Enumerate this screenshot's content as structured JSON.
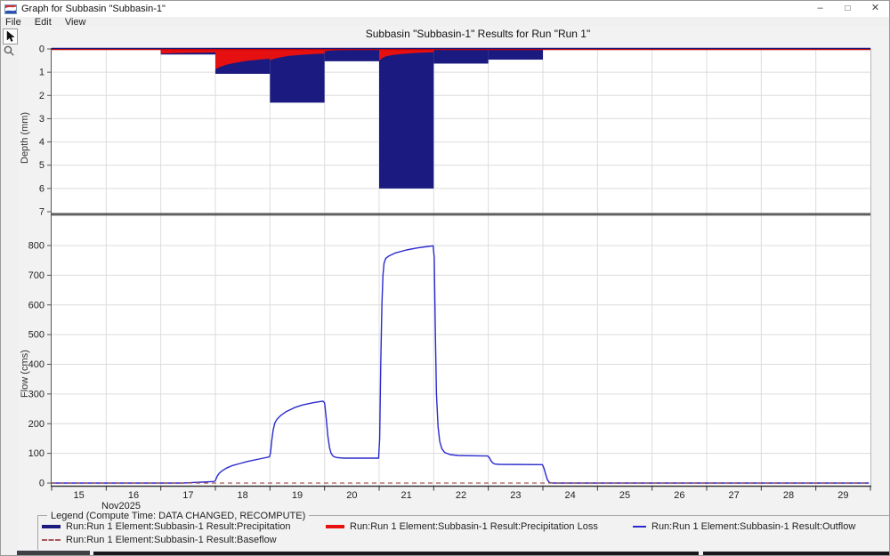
{
  "window": {
    "title": "Graph for Subbasin \"Subbasin-1\"",
    "controls": [
      {
        "name": "minimize",
        "glyph": "–"
      },
      {
        "name": "maximize",
        "glyph": "□"
      },
      {
        "name": "close",
        "glyph": "✕"
      }
    ]
  },
  "menu": {
    "items": [
      "File",
      "Edit",
      "View"
    ]
  },
  "toolbar": {
    "tools": [
      "pointer-tool",
      "zoom-tool"
    ]
  },
  "chart": {
    "title": "Subbasin \"Subbasin-1\" Results for Run \"Run 1\"",
    "top_ylabel": "Depth (mm)",
    "bottom_ylabel": "Flow (cms)"
  },
  "legend": {
    "title": "Legend (Compute Time: DATA CHANGED, RECOMPUTE)",
    "items": [
      {
        "label": "Run:Run 1 Element:Subbasin-1 Result:Precipitation",
        "color": "#1a1a80",
        "style": "thick"
      },
      {
        "label": "Run:Run 1 Element:Subbasin-1 Result:Precipitation Loss",
        "color": "#e61010",
        "style": "thick"
      },
      {
        "label": "Run:Run 1 Element:Subbasin-1 Result:Outflow",
        "color": "#2a2ace",
        "style": "thin"
      },
      {
        "label": "Run:Run 1 Element:Subbasin-1 Result:Baseflow",
        "color": "#a85858",
        "style": "dashed"
      }
    ]
  },
  "colors": {
    "precipitation": "#1a1a80",
    "precipitation_loss": "#e61010",
    "outflow": "#2a2ace",
    "baseflow": "#a85858",
    "grid": "#dcdcdc",
    "axis": "#444444",
    "separator": "#5f5f5f"
  },
  "chart_data": [
    {
      "type": "bar",
      "name": "precipitation-hyetograph",
      "ylabel": "Depth (mm)",
      "y_inverted": true,
      "ylim": [
        0,
        7
      ],
      "yticks": [
        0,
        1,
        2,
        3,
        4,
        5,
        6,
        7
      ],
      "x_days": [
        15,
        30
      ],
      "grid": true,
      "bars": [
        {
          "day_start": 17,
          "day_end": 18,
          "precip_mm": 0.24,
          "loss_mm_curve": [
            [
              17.0,
              0.2
            ],
            [
              17.25,
              0.185
            ],
            [
              17.5,
              0.17
            ],
            [
              17.75,
              0.16
            ],
            [
              18.0,
              0.15
            ]
          ]
        },
        {
          "day_start": 18,
          "day_end": 19,
          "precip_mm": 1.07,
          "loss_mm_curve": [
            [
              18.0,
              0.88
            ],
            [
              18.08,
              0.78
            ],
            [
              18.2,
              0.68
            ],
            [
              18.35,
              0.6
            ],
            [
              18.55,
              0.52
            ],
            [
              18.8,
              0.46
            ],
            [
              19.0,
              0.42
            ]
          ]
        },
        {
          "day_start": 19,
          "day_end": 20,
          "precip_mm": 2.31,
          "loss_mm_curve": [
            [
              19.0,
              0.49
            ],
            [
              19.08,
              0.42
            ],
            [
              19.2,
              0.36
            ],
            [
              19.35,
              0.3
            ],
            [
              19.55,
              0.26
            ],
            [
              19.8,
              0.22
            ],
            [
              20.0,
              0.2
            ]
          ]
        },
        {
          "day_start": 20,
          "day_end": 21,
          "precip_mm": 0.53,
          "loss_mm_curve": [
            [
              20.0,
              0.1
            ],
            [
              20.12,
              0.07
            ],
            [
              20.3,
              0.05
            ],
            [
              20.6,
              0.04
            ],
            [
              21.0,
              0.035
            ]
          ]
        },
        {
          "day_start": 21,
          "day_end": 22,
          "precip_mm": 6.0,
          "loss_mm_curve": [
            [
              21.0,
              0.52
            ],
            [
              21.05,
              0.4
            ],
            [
              21.12,
              0.32
            ],
            [
              21.25,
              0.26
            ],
            [
              21.45,
              0.21
            ],
            [
              21.7,
              0.17
            ],
            [
              22.0,
              0.14
            ]
          ]
        },
        {
          "day_start": 22,
          "day_end": 23,
          "precip_mm": 0.63,
          "loss_mm_curve": [
            [
              22.0,
              0.05
            ],
            [
              22.3,
              0.03
            ],
            [
              23.0,
              0.02
            ]
          ]
        },
        {
          "day_start": 23,
          "day_end": 24,
          "precip_mm": 0.46,
          "loss_mm_curve": [
            [
              23.0,
              0.02
            ],
            [
              24.0,
              0.015
            ]
          ]
        }
      ]
    },
    {
      "type": "line",
      "name": "flow-hydrograph",
      "ylabel": "Flow (cms)",
      "ylim": [
        0,
        905
      ],
      "yticks": [
        0,
        100,
        200,
        300,
        400,
        500,
        600,
        700,
        800
      ],
      "grid": true,
      "x_axis": {
        "start_day": 15,
        "end_day": 30,
        "tick_labels": [
          "15",
          "16",
          "17",
          "18",
          "19",
          "20",
          "21",
          "22",
          "23",
          "24",
          "25",
          "26",
          "27",
          "28",
          "29"
        ],
        "month_label": "Nov2025"
      },
      "series": [
        {
          "name": "Outflow",
          "color": "#2a2ace",
          "dashed": false,
          "points": [
            [
              15,
              0
            ],
            [
              17.4,
              0
            ],
            [
              17.5,
              1
            ],
            [
              17.75,
              3
            ],
            [
              17.97,
              5
            ],
            [
              18.0,
              8
            ],
            [
              18.03,
              22
            ],
            [
              18.07,
              33
            ],
            [
              18.12,
              41
            ],
            [
              18.2,
              50
            ],
            [
              18.3,
              58
            ],
            [
              18.45,
              66
            ],
            [
              18.6,
              73
            ],
            [
              18.8,
              81
            ],
            [
              18.99,
              88
            ],
            [
              19.01,
              100
            ],
            [
              19.03,
              140
            ],
            [
              19.06,
              180
            ],
            [
              19.09,
              203
            ],
            [
              19.13,
              215
            ],
            [
              19.2,
              228
            ],
            [
              19.3,
              241
            ],
            [
              19.45,
              254
            ],
            [
              19.6,
              263
            ],
            [
              19.8,
              271
            ],
            [
              19.97,
              276
            ],
            [
              20.0,
              270
            ],
            [
              20.03,
              220
            ],
            [
              20.06,
              160
            ],
            [
              20.09,
              120
            ],
            [
              20.12,
              100
            ],
            [
              20.16,
              90
            ],
            [
              20.22,
              86
            ],
            [
              20.35,
              84
            ],
            [
              20.99,
              84
            ],
            [
              21.01,
              150
            ],
            [
              21.03,
              400
            ],
            [
              21.05,
              600
            ],
            [
              21.07,
              700
            ],
            [
              21.09,
              740
            ],
            [
              21.12,
              757
            ],
            [
              21.18,
              765
            ],
            [
              21.3,
              775
            ],
            [
              21.5,
              785
            ],
            [
              21.7,
              792
            ],
            [
              21.9,
              797
            ],
            [
              21.99,
              799
            ],
            [
              22.01,
              760
            ],
            [
              22.03,
              500
            ],
            [
              22.05,
              300
            ],
            [
              22.08,
              190
            ],
            [
              22.11,
              140
            ],
            [
              22.15,
              115
            ],
            [
              22.2,
              103
            ],
            [
              22.3,
              96
            ],
            [
              22.45,
              93
            ],
            [
              22.7,
              92
            ],
            [
              22.99,
              91
            ],
            [
              23.02,
              85
            ],
            [
              23.05,
              75
            ],
            [
              23.08,
              68
            ],
            [
              23.12,
              64
            ],
            [
              23.2,
              63
            ],
            [
              23.99,
              62
            ],
            [
              24.02,
              50
            ],
            [
              24.05,
              30
            ],
            [
              24.08,
              12
            ],
            [
              24.11,
              4
            ],
            [
              24.14,
              1
            ],
            [
              24.2,
              0
            ],
            [
              29.97,
              0
            ]
          ]
        },
        {
          "name": "Baseflow",
          "color": "#a85858",
          "dashed": true,
          "points": [
            [
              15,
              0
            ],
            [
              29.97,
              0
            ]
          ]
        }
      ]
    }
  ]
}
